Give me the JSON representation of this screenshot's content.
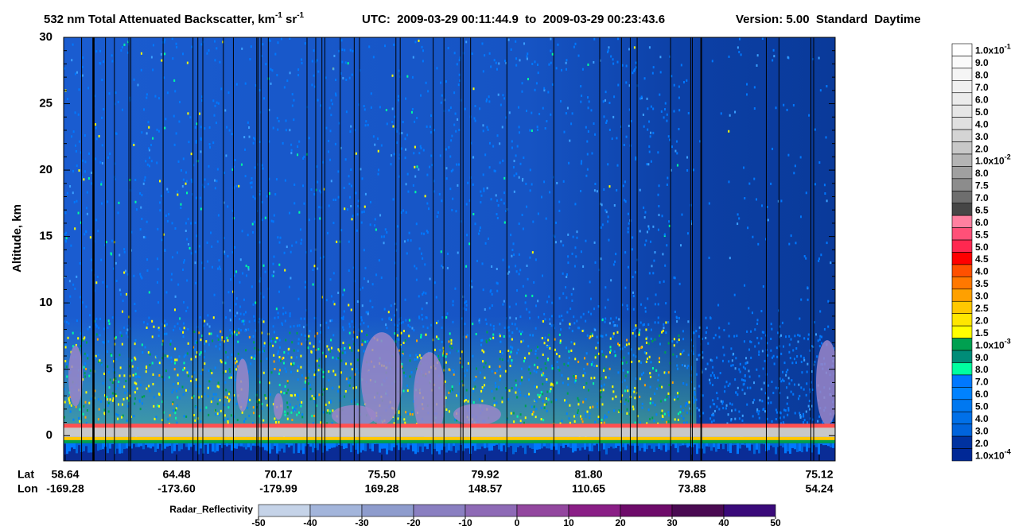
{
  "chart_data": {
    "type": "curtain",
    "title_parts": [
      {
        "text": "532 nm Total Attenuated Backscatter, km",
        "sup": false
      },
      {
        "text": "-1",
        "sup": true
      },
      {
        "text": " sr",
        "sup": false
      },
      {
        "text": "-1",
        "sup": true
      }
    ],
    "utc": "UTC:  2009-03-29 00:11:44.9  to  2009-03-29 00:23:43.6",
    "version": "Version: 5.00  Standard  Daytime",
    "y_label": "Altitude, km",
    "ylim": [
      -1.9,
      30
    ],
    "yticks": [
      0,
      5,
      10,
      15,
      20,
      25,
      30
    ],
    "x_row_labels": [
      "Lat",
      "Lon"
    ],
    "lat": [
      "58.64",
      "64.48",
      "70.17",
      "75.50",
      "79.92",
      "81.80",
      "79.65",
      "75.12"
    ],
    "lon": [
      "-169.28",
      "-173.60",
      "-179.99",
      "169.28",
      "148.57",
      "110.65",
      "73.88",
      "54.24"
    ],
    "colorbar": {
      "labels": [
        {
          "base": "1.0x10",
          "sup": "-1"
        },
        {
          "base": "9.0"
        },
        {
          "base": "8.0"
        },
        {
          "base": "7.0"
        },
        {
          "base": "6.0"
        },
        {
          "base": "5.0"
        },
        {
          "base": "4.0"
        },
        {
          "base": "3.0"
        },
        {
          "base": "2.0"
        },
        {
          "base": "1.0x10",
          "sup": "-2"
        },
        {
          "base": "8.0"
        },
        {
          "base": "7.5"
        },
        {
          "base": "7.0"
        },
        {
          "base": "6.5"
        },
        {
          "base": "6.0"
        },
        {
          "base": "5.5"
        },
        {
          "base": "5.0"
        },
        {
          "base": "4.5"
        },
        {
          "base": "4.0"
        },
        {
          "base": "3.5"
        },
        {
          "base": "3.0"
        },
        {
          "base": "2.5"
        },
        {
          "base": "2.0"
        },
        {
          "base": "1.5"
        },
        {
          "base": "1.0x10",
          "sup": "-3"
        },
        {
          "base": "9.0"
        },
        {
          "base": "8.0"
        },
        {
          "base": "7.0"
        },
        {
          "base": "6.0"
        },
        {
          "base": "5.0"
        },
        {
          "base": "4.0"
        },
        {
          "base": "3.0"
        },
        {
          "base": "2.0"
        },
        {
          "base": "1.0x10",
          "sup": "-4"
        }
      ],
      "colors": [
        "#ffffff",
        "#fafafa",
        "#f5f5f5",
        "#f0f0f0",
        "#ebebeb",
        "#e6e6e6",
        "#e0e0e0",
        "#d4d4d4",
        "#c8c8c8",
        "#b4b4b4",
        "#a0a0a0",
        "#8c8c8c",
        "#6e6e6e",
        "#464646",
        "#ff80a0",
        "#ff5078",
        "#ff2850",
        "#ff0000",
        "#ff5000",
        "#ff7800",
        "#ffa000",
        "#ffc800",
        "#ffe600",
        "#ffff00",
        "#00a050",
        "#008c78",
        "#00ffa0",
        "#0078ff",
        "#0082ff",
        "#0078f0",
        "#0070e8",
        "#0064dc",
        "#0032a0",
        "#002896"
      ]
    },
    "radar_colorbar": {
      "label": "Radar_Reflectivity",
      "ticks": [
        -50,
        -40,
        -30,
        -20,
        -10,
        0,
        10,
        20,
        30,
        40,
        50
      ],
      "colors": [
        "#c5d3e8",
        "#a3b5db",
        "#8e9ccd",
        "#8a7fc1",
        "#8e6ab6",
        "#93479f",
        "#8a1e86",
        "#6e0b6a",
        "#4a0a52",
        "#3a0a7a"
      ]
    }
  }
}
